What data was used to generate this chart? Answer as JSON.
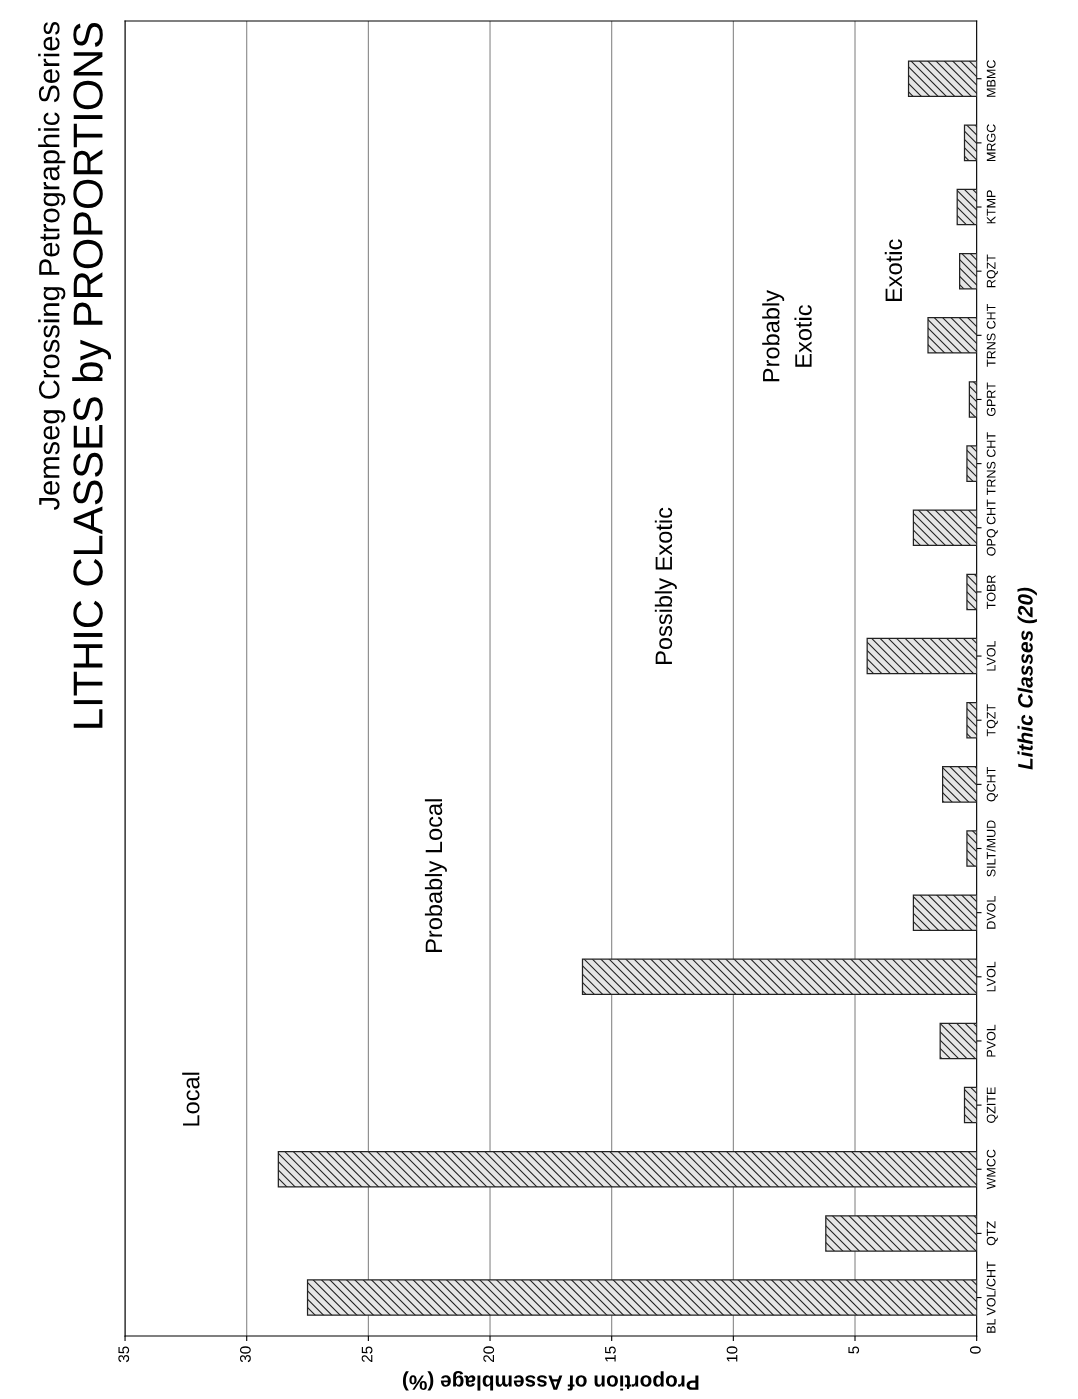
{
  "chart_data": {
    "type": "bar",
    "orientation": "horizontal",
    "title": "LITHIC CLASSES by PROPORTIONS",
    "subtitle": "Jemseg Crossing Petrographic Series",
    "xlabel": "Proportion of Assemblage (%)",
    "ylabel": "Lithic Classes (20)",
    "categories": [
      "MBMC",
      "MRGC",
      "KTMP",
      "RQZT",
      "TRNS CHT",
      "GPRT",
      "TRNS CHT",
      "OPQ CHT",
      "TOBR",
      "LVOL",
      "TQZT",
      "QCHT",
      "SILT/MUD",
      "DVOL",
      "LVOL",
      "PVOL",
      "QZITE",
      "WMCC",
      "QTZ",
      "BL VOL/CHT"
    ],
    "values": [
      2.8,
      0.5,
      0.8,
      0.7,
      2.0,
      0.3,
      0.4,
      2.6,
      0.4,
      4.5,
      0.4,
      1.4,
      0.4,
      2.6,
      16.2,
      1.5,
      0.5,
      28.7,
      6.2,
      27.5
    ],
    "color": "#222222",
    "xlim": [
      35,
      0
    ],
    "xticks": [
      0,
      5,
      10,
      15,
      20,
      25,
      30,
      35
    ],
    "grid": "x",
    "annotations": [
      "Local",
      "Probably Local",
      "Possibly Exotic",
      "Probably\nExotic",
      "Exotic"
    ]
  }
}
